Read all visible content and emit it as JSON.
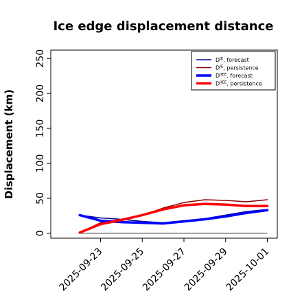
{
  "chart_data": {
    "type": "line",
    "title": "Ice edge displacement distance",
    "xlabel": "",
    "ylabel": "Displacement (km)",
    "x": [
      "2025-09-22",
      "2025-09-23",
      "2025-09-24",
      "2025-09-25",
      "2025-09-26",
      "2025-09-27",
      "2025-09-28",
      "2025-09-29",
      "2025-09-30",
      "2025-10-01"
    ],
    "x_ticks": [
      "2025-09-23",
      "2025-09-25",
      "2025-09-27",
      "2025-09-29",
      "2025-10-01"
    ],
    "highlighted_tick": "2025-09-23",
    "highlight_color": "#228b22",
    "y_ticks": [
      0,
      50,
      100,
      150,
      200,
      250
    ],
    "ylim": [
      -7,
      262
    ],
    "grid": false,
    "legend_position": "top-right",
    "series": [
      {
        "name": "D^IE, forecast",
        "legend_main": "D",
        "legend_sup": "IE",
        "legend_rest": ", forecast",
        "color": "#00008b",
        "width": "thin",
        "values": [
          26,
          22,
          20,
          17,
          15,
          18,
          21,
          26,
          31,
          34
        ]
      },
      {
        "name": "D^IE, persistence",
        "legend_main": "D",
        "legend_sup": "IE",
        "legend_rest": ", persistence",
        "color": "#8b0000",
        "width": "thin",
        "values": [
          1,
          15,
          20,
          26,
          36,
          44,
          48,
          47,
          45,
          48
        ]
      },
      {
        "name": "D^IIEE, forecast",
        "legend_main": "D",
        "legend_sup": "IIEE",
        "legend_rest": ", forecast",
        "color": "#0000ff",
        "width": "thick",
        "values": [
          26,
          18,
          16,
          15,
          14,
          17,
          20,
          24,
          29,
          33
        ]
      },
      {
        "name": "D^IIEE, persistence",
        "legend_main": "D",
        "legend_sup": "IIEE",
        "legend_rest": ", persistence",
        "color": "#ff0000",
        "width": "thick",
        "values": [
          1,
          13,
          19,
          26,
          34,
          40,
          42,
          41,
          39,
          39
        ]
      }
    ]
  }
}
